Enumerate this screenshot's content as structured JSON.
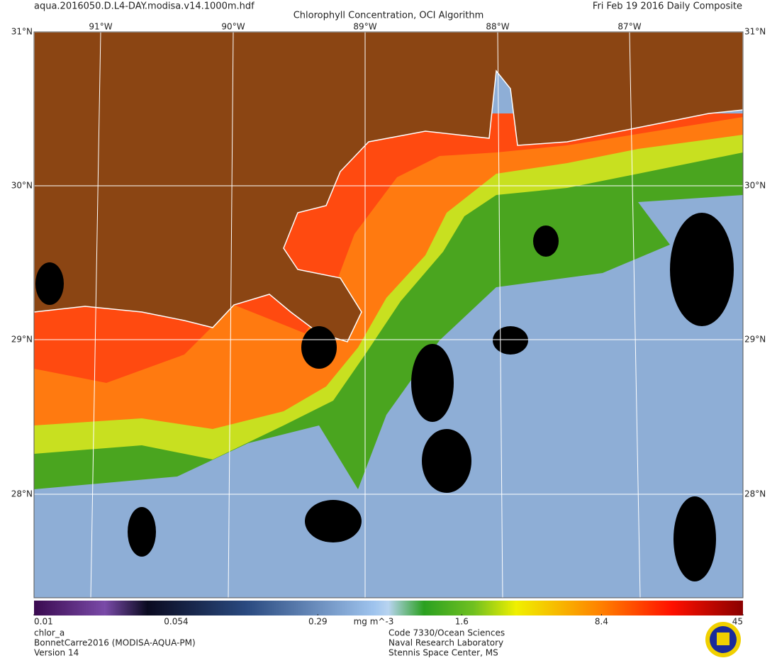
{
  "header": {
    "file": "aqua.2016050.D.L4-DAY.modisa.v14.1000m.hdf",
    "title": "Chlorophyll Concentration, OCI Algorithm",
    "date": "Fri Feb 19 2016 Daily Composite"
  },
  "map": {
    "lon_labels": [
      "91°W",
      "90°W",
      "89°W",
      "88°W",
      "87°W"
    ],
    "top_lat_label": "31°N",
    "lat_labels": [
      "30°N",
      "29°N",
      "28°N"
    ]
  },
  "colorbar": {
    "ticks": [
      0.01,
      0.054,
      0.29,
      1.6,
      8.4,
      45
    ],
    "unit": "mg m^-3",
    "log_scale": true
  },
  "footer": {
    "left": [
      "chlor_a",
      "BonnetCarre2016 (MODISA-AQUA-PM)",
      "Version 14"
    ],
    "right": [
      "Code 7330/Ocean Sciences",
      "Naval Research Laboratory",
      "Stennis Space Center, MS"
    ]
  }
}
